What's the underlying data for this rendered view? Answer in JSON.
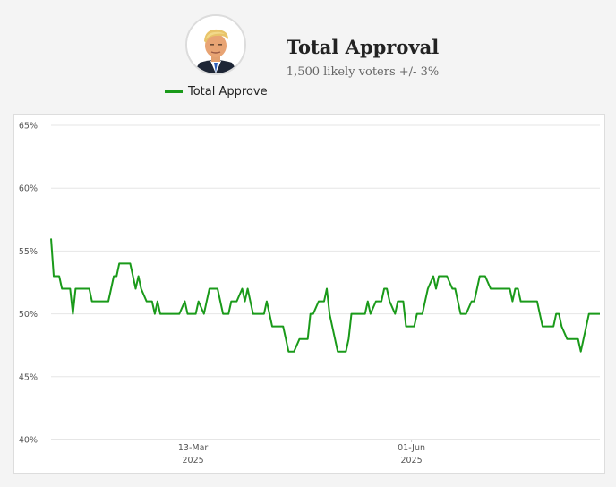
{
  "header": {
    "title": "Total Approval",
    "subtitle": "1,500 likely voters +/- 3%",
    "avatar_icon": "portrait-avatar-icon"
  },
  "legend": {
    "label": "Total Approve",
    "color": "#1a9a1a"
  },
  "chart_data": {
    "type": "line",
    "ylabel": "",
    "xlabel": "",
    "ylim": [
      40,
      65
    ],
    "yticks": [
      "40%",
      "45%",
      "50%",
      "55%",
      "60%",
      "65%"
    ],
    "xticks": [
      {
        "line1": "13-Mar",
        "line2": "2025",
        "date": "2025-03-13"
      },
      {
        "line1": "01-Jun",
        "line2": "2025",
        "date": "2025-06-01"
      }
    ],
    "grid": true,
    "legend_position": "top",
    "series": [
      {
        "name": "Total Approve",
        "color": "#1a9a1a",
        "points": [
          [
            "2025-01-20",
            56
          ],
          [
            "2025-01-21",
            53
          ],
          [
            "2025-01-22",
            53
          ],
          [
            "2025-01-23",
            53
          ],
          [
            "2025-01-24",
            52
          ],
          [
            "2025-01-25",
            52
          ],
          [
            "2025-01-27",
            52
          ],
          [
            "2025-01-28",
            50
          ],
          [
            "2025-01-29",
            52
          ],
          [
            "2025-01-30",
            52
          ],
          [
            "2025-01-31",
            52
          ],
          [
            "2025-02-03",
            52
          ],
          [
            "2025-02-04",
            51
          ],
          [
            "2025-02-05",
            51
          ],
          [
            "2025-02-06",
            51
          ],
          [
            "2025-02-07",
            51
          ],
          [
            "2025-02-10",
            51
          ],
          [
            "2025-02-11",
            52
          ],
          [
            "2025-02-12",
            53
          ],
          [
            "2025-02-13",
            53
          ],
          [
            "2025-02-14",
            54
          ],
          [
            "2025-02-15",
            54
          ],
          [
            "2025-02-17",
            54
          ],
          [
            "2025-02-18",
            54
          ],
          [
            "2025-02-19",
            53
          ],
          [
            "2025-02-20",
            52
          ],
          [
            "2025-02-21",
            53
          ],
          [
            "2025-02-22",
            52
          ],
          [
            "2025-02-24",
            51
          ],
          [
            "2025-02-25",
            51
          ],
          [
            "2025-02-26",
            51
          ],
          [
            "2025-02-27",
            50
          ],
          [
            "2025-02-28",
            51
          ],
          [
            "2025-03-01",
            50
          ],
          [
            "2025-03-03",
            50
          ],
          [
            "2025-03-04",
            50
          ],
          [
            "2025-03-05",
            50
          ],
          [
            "2025-03-06",
            50
          ],
          [
            "2025-03-07",
            50
          ],
          [
            "2025-03-08",
            50
          ],
          [
            "2025-03-10",
            51
          ],
          [
            "2025-03-11",
            50
          ],
          [
            "2025-03-12",
            50
          ],
          [
            "2025-03-13",
            50
          ],
          [
            "2025-03-14",
            50
          ],
          [
            "2025-03-15",
            51
          ],
          [
            "2025-03-17",
            50
          ],
          [
            "2025-03-18",
            51
          ],
          [
            "2025-03-19",
            52
          ],
          [
            "2025-03-20",
            52
          ],
          [
            "2025-03-21",
            52
          ],
          [
            "2025-03-22",
            52
          ],
          [
            "2025-03-24",
            50
          ],
          [
            "2025-03-25",
            50
          ],
          [
            "2025-03-26",
            50
          ],
          [
            "2025-03-27",
            51
          ],
          [
            "2025-03-28",
            51
          ],
          [
            "2025-03-29",
            51
          ],
          [
            "2025-03-31",
            52
          ],
          [
            "2025-04-01",
            51
          ],
          [
            "2025-04-02",
            52
          ],
          [
            "2025-04-03",
            51
          ],
          [
            "2025-04-04",
            50
          ],
          [
            "2025-04-05",
            50
          ],
          [
            "2025-04-07",
            50
          ],
          [
            "2025-04-08",
            50
          ],
          [
            "2025-04-09",
            51
          ],
          [
            "2025-04-10",
            50
          ],
          [
            "2025-04-11",
            49
          ],
          [
            "2025-04-12",
            49
          ],
          [
            "2025-04-14",
            49
          ],
          [
            "2025-04-15",
            49
          ],
          [
            "2025-04-16",
            48
          ],
          [
            "2025-04-17",
            47
          ],
          [
            "2025-04-18",
            47
          ],
          [
            "2025-04-19",
            47
          ],
          [
            "2025-04-21",
            48
          ],
          [
            "2025-04-22",
            48
          ],
          [
            "2025-04-23",
            48
          ],
          [
            "2025-04-24",
            48
          ],
          [
            "2025-04-25",
            50
          ],
          [
            "2025-04-26",
            50
          ],
          [
            "2025-04-28",
            51
          ],
          [
            "2025-04-29",
            51
          ],
          [
            "2025-04-30",
            51
          ],
          [
            "2025-05-01",
            52
          ],
          [
            "2025-05-02",
            50
          ],
          [
            "2025-05-03",
            49
          ],
          [
            "2025-05-05",
            47
          ],
          [
            "2025-05-06",
            47
          ],
          [
            "2025-05-07",
            47
          ],
          [
            "2025-05-08",
            47
          ],
          [
            "2025-05-09",
            48
          ],
          [
            "2025-05-10",
            50
          ],
          [
            "2025-05-12",
            50
          ],
          [
            "2025-05-13",
            50
          ],
          [
            "2025-05-14",
            50
          ],
          [
            "2025-05-15",
            50
          ],
          [
            "2025-05-16",
            51
          ],
          [
            "2025-05-17",
            50
          ],
          [
            "2025-05-19",
            51
          ],
          [
            "2025-05-20",
            51
          ],
          [
            "2025-05-21",
            51
          ],
          [
            "2025-05-22",
            52
          ],
          [
            "2025-05-23",
            52
          ],
          [
            "2025-05-24",
            51
          ],
          [
            "2025-05-26",
            50
          ],
          [
            "2025-05-27",
            51
          ],
          [
            "2025-05-28",
            51
          ],
          [
            "2025-05-29",
            51
          ],
          [
            "2025-05-30",
            49
          ],
          [
            "2025-05-31",
            49
          ],
          [
            "2025-06-02",
            49
          ],
          [
            "2025-06-03",
            50
          ],
          [
            "2025-06-04",
            50
          ],
          [
            "2025-06-05",
            50
          ],
          [
            "2025-06-06",
            51
          ],
          [
            "2025-06-07",
            52
          ],
          [
            "2025-06-09",
            53
          ],
          [
            "2025-06-10",
            52
          ],
          [
            "2025-06-11",
            53
          ],
          [
            "2025-06-12",
            53
          ],
          [
            "2025-06-13",
            53
          ],
          [
            "2025-06-14",
            53
          ],
          [
            "2025-06-16",
            52
          ],
          [
            "2025-06-17",
            52
          ],
          [
            "2025-06-18",
            51
          ],
          [
            "2025-06-19",
            50
          ],
          [
            "2025-06-20",
            50
          ],
          [
            "2025-06-21",
            50
          ],
          [
            "2025-06-23",
            51
          ],
          [
            "2025-06-24",
            51
          ],
          [
            "2025-06-25",
            52
          ],
          [
            "2025-06-26",
            53
          ],
          [
            "2025-06-27",
            53
          ],
          [
            "2025-06-28",
            53
          ],
          [
            "2025-06-30",
            52
          ],
          [
            "2025-07-01",
            52
          ],
          [
            "2025-07-02",
            52
          ],
          [
            "2025-07-03",
            52
          ],
          [
            "2025-07-04",
            52
          ],
          [
            "2025-07-05",
            52
          ],
          [
            "2025-07-07",
            52
          ],
          [
            "2025-07-08",
            51
          ],
          [
            "2025-07-09",
            52
          ],
          [
            "2025-07-10",
            52
          ],
          [
            "2025-07-11",
            51
          ],
          [
            "2025-07-12",
            51
          ],
          [
            "2025-07-14",
            51
          ],
          [
            "2025-07-15",
            51
          ],
          [
            "2025-07-16",
            51
          ],
          [
            "2025-07-17",
            51
          ],
          [
            "2025-07-18",
            50
          ],
          [
            "2025-07-19",
            49
          ],
          [
            "2025-07-21",
            49
          ],
          [
            "2025-07-22",
            49
          ],
          [
            "2025-07-23",
            49
          ],
          [
            "2025-07-24",
            50
          ],
          [
            "2025-07-25",
            50
          ],
          [
            "2025-07-26",
            49
          ],
          [
            "2025-07-28",
            48
          ],
          [
            "2025-07-29",
            48
          ],
          [
            "2025-07-30",
            48
          ],
          [
            "2025-07-31",
            48
          ],
          [
            "2025-08-01",
            48
          ],
          [
            "2025-08-02",
            47
          ],
          [
            "2025-08-04",
            49
          ],
          [
            "2025-08-05",
            50
          ],
          [
            "2025-08-06",
            50
          ],
          [
            "2025-08-07",
            50
          ],
          [
            "2025-08-08",
            50
          ],
          [
            "2025-08-09",
            50
          ]
        ]
      }
    ]
  }
}
